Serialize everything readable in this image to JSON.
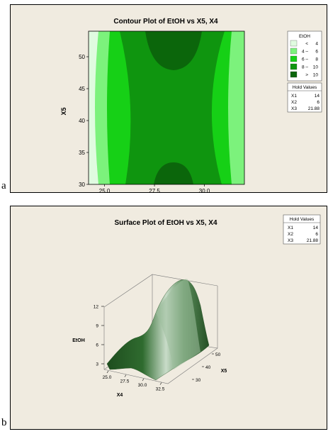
{
  "panel_labels": {
    "a": "a",
    "b": "b"
  },
  "chart_data": [
    {
      "type": "heatmap",
      "subtype": "contour",
      "title": "Contour Plot of EtOH vs X5, X4",
      "xlabel": "X4",
      "ylabel": "X5",
      "xlim": [
        24.2,
        32.0
      ],
      "ylim": [
        30,
        54
      ],
      "xticks": [
        "25.0",
        "27.5",
        "30.0"
      ],
      "yticks": [
        "30",
        "35",
        "40",
        "45",
        "50"
      ],
      "legend": {
        "title": "EtOH",
        "placement": "right",
        "levels": [
          {
            "op": "<",
            "range": "4",
            "color": "#e0fbe0"
          },
          {
            "op": "4 –",
            "range": "6",
            "color": "#7cf27c"
          },
          {
            "op": "6 –",
            "range": "8",
            "color": "#16d016"
          },
          {
            "op": "8 –",
            "range": "10",
            "color": "#0f950f"
          },
          {
            "op": ">",
            "range": "10",
            "color": "#0b660b"
          }
        ]
      },
      "hold_values": {
        "title": "Hold Values",
        "rows": [
          {
            "name": "X1",
            "value": "14"
          },
          {
            "name": "X2",
            "value": "6"
          },
          {
            "name": "X3",
            "value": "21.88"
          }
        ]
      }
    },
    {
      "type": "surface",
      "title": "Surface Plot of EtOH vs X5, X4",
      "xlabel": "X4",
      "ylabel": "X5",
      "zlabel": "EtOH",
      "xticks": [
        "25.0",
        "27.5",
        "30.0",
        "32.5"
      ],
      "yticks": [
        "30",
        "40",
        "50"
      ],
      "zticks": [
        "3",
        "6",
        "9",
        "12"
      ],
      "hold_values": {
        "title": "Hold Values",
        "rows": [
          {
            "name": "X1",
            "value": "14"
          },
          {
            "name": "X2",
            "value": "6"
          },
          {
            "name": "X3",
            "value": "21.88"
          }
        ]
      }
    }
  ]
}
